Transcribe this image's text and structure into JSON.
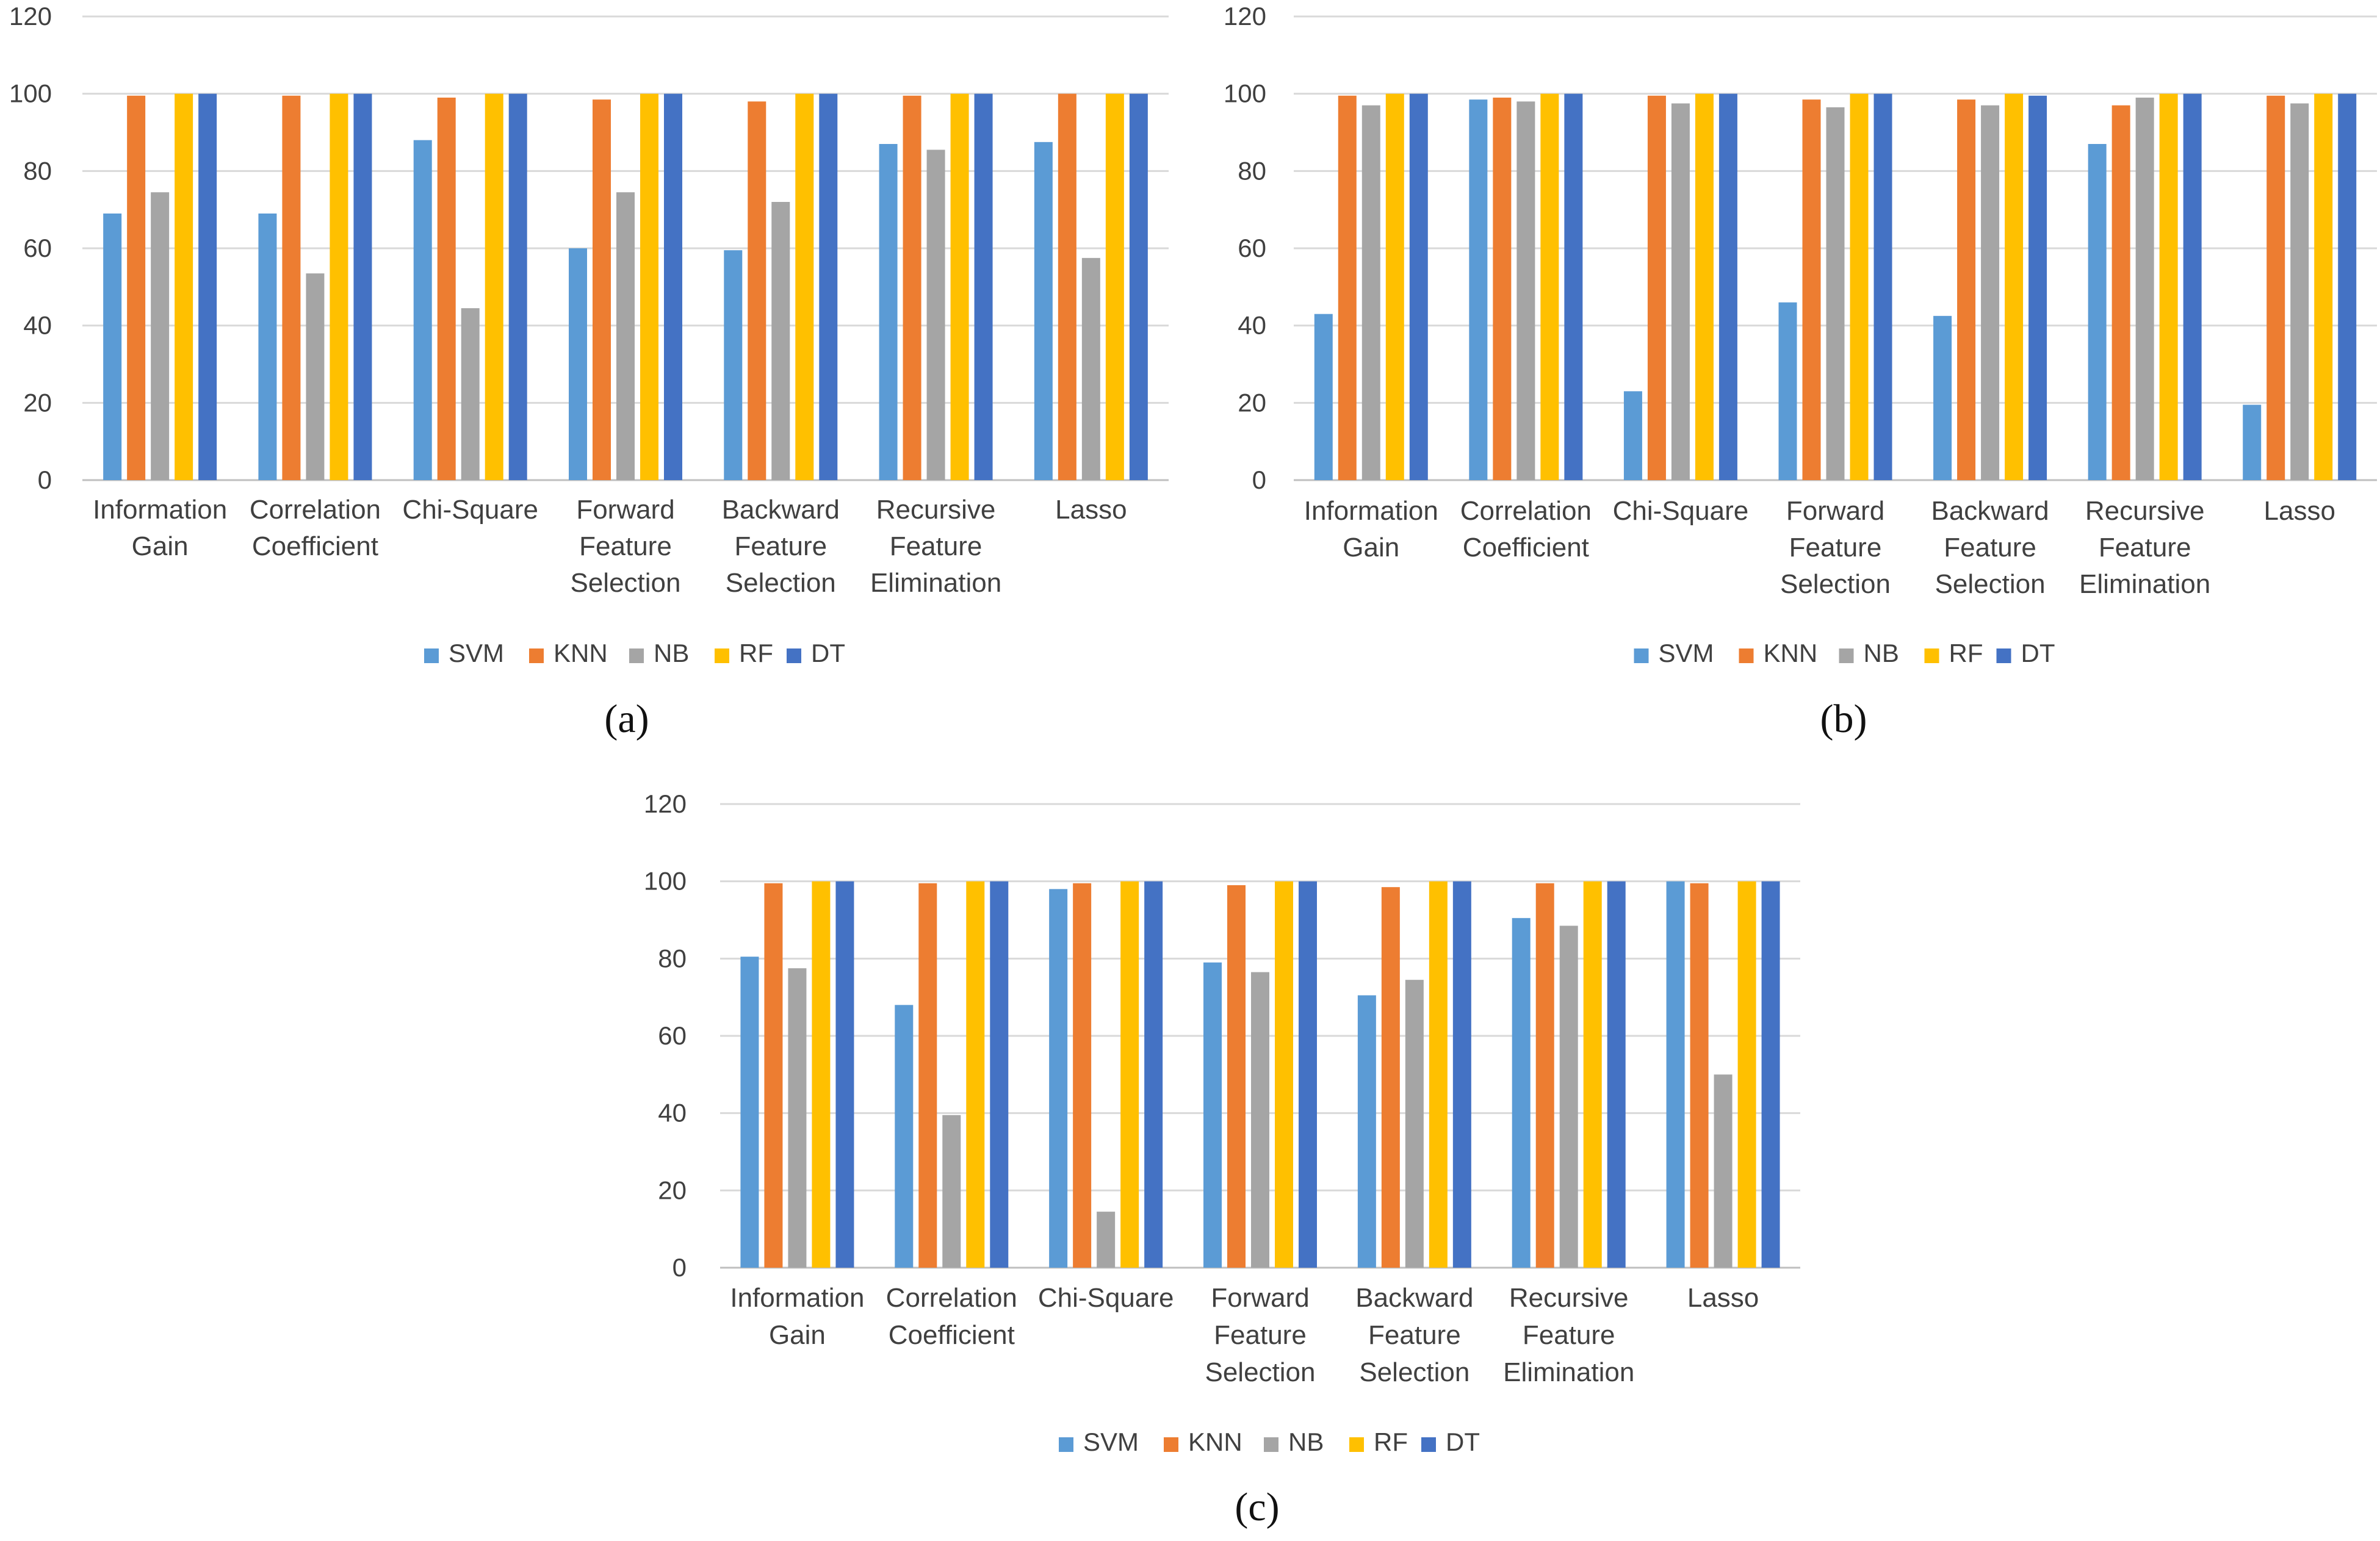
{
  "chart_data": [
    {
      "type": "bar",
      "caption": "(a)",
      "categories": [
        [
          "Information",
          "Gain"
        ],
        [
          "Correlation",
          "Coefficient"
        ],
        [
          "Chi-Square"
        ],
        [
          "Forward",
          "Feature",
          "Selection"
        ],
        [
          "Backward",
          "Feature",
          "Selection"
        ],
        [
          "Recursive",
          "Feature",
          "Elimination"
        ],
        [
          "Lasso"
        ]
      ],
      "yticks": [
        0,
        20,
        40,
        60,
        80,
        100,
        120
      ],
      "ylim": [
        0,
        120
      ],
      "grid": true,
      "legend_position": "bottom",
      "series": [
        {
          "name": "SVM",
          "color": "#5B9BD5",
          "values": [
            69,
            69,
            88,
            60,
            59.5,
            87,
            87.5
          ]
        },
        {
          "name": "KNN",
          "color": "#ED7D31",
          "values": [
            99.5,
            99.5,
            99,
            98.5,
            98,
            99.5,
            100
          ]
        },
        {
          "name": "NB",
          "color": "#A5A5A5",
          "values": [
            74.5,
            53.5,
            44.5,
            74.5,
            72,
            85.5,
            57.5
          ]
        },
        {
          "name": "RF",
          "color": "#FFC000",
          "values": [
            100,
            100,
            100,
            100,
            100,
            100,
            100
          ]
        },
        {
          "name": "DT",
          "color": "#4472C4",
          "values": [
            100,
            100,
            100,
            100,
            100,
            100,
            100
          ]
        }
      ]
    },
    {
      "type": "bar",
      "caption": "(b)",
      "categories": [
        [
          "Information",
          "Gain"
        ],
        [
          "Correlation",
          "Coefficient"
        ],
        [
          "Chi-Square"
        ],
        [
          "Forward",
          "Feature",
          "Selection"
        ],
        [
          "Backward",
          "Feature",
          "Selection"
        ],
        [
          "Recursive",
          "Feature",
          "Elimination"
        ],
        [
          "Lasso"
        ]
      ],
      "yticks": [
        0,
        20,
        40,
        60,
        80,
        100,
        120
      ],
      "ylim": [
        0,
        120
      ],
      "grid": true,
      "legend_position": "bottom",
      "series": [
        {
          "name": "SVM",
          "color": "#5B9BD5",
          "values": [
            43,
            98.5,
            23,
            46,
            42.5,
            87,
            19.5
          ]
        },
        {
          "name": "KNN",
          "color": "#ED7D31",
          "values": [
            99.5,
            99,
            99.5,
            98.5,
            98.5,
            97,
            99.5
          ]
        },
        {
          "name": "NB",
          "color": "#A5A5A5",
          "values": [
            97,
            98,
            97.5,
            96.5,
            97,
            99,
            97.5
          ]
        },
        {
          "name": "RF",
          "color": "#FFC000",
          "values": [
            100,
            100,
            100,
            100,
            100,
            100,
            100
          ]
        },
        {
          "name": "DT",
          "color": "#4472C4",
          "values": [
            100,
            100,
            100,
            100,
            99.5,
            100,
            100
          ]
        }
      ]
    },
    {
      "type": "bar",
      "caption": "(c)",
      "categories": [
        [
          "Information",
          "Gain"
        ],
        [
          "Correlation",
          "Coefficient"
        ],
        [
          "Chi-Square"
        ],
        [
          "Forward",
          "Feature",
          "Selection"
        ],
        [
          "Backward",
          "Feature",
          "Selection"
        ],
        [
          "Recursive",
          "Feature",
          "Elimination"
        ],
        [
          "Lasso"
        ]
      ],
      "yticks": [
        0,
        20,
        40,
        60,
        80,
        100,
        120
      ],
      "ylim": [
        0,
        120
      ],
      "grid": true,
      "legend_position": "bottom",
      "series": [
        {
          "name": "SVM",
          "color": "#5B9BD5",
          "values": [
            80.5,
            68,
            98,
            79,
            70.5,
            90.5,
            100
          ]
        },
        {
          "name": "KNN",
          "color": "#ED7D31",
          "values": [
            99.5,
            99.5,
            99.5,
            99,
            98.5,
            99.5,
            99.5
          ]
        },
        {
          "name": "NB",
          "color": "#A5A5A5",
          "values": [
            77.5,
            39.5,
            14.5,
            76.5,
            74.5,
            88.5,
            50
          ]
        },
        {
          "name": "RF",
          "color": "#FFC000",
          "values": [
            100,
            100,
            100,
            100,
            100,
            100,
            100
          ]
        },
        {
          "name": "DT",
          "color": "#4472C4",
          "values": [
            100,
            100,
            100,
            100,
            100,
            100,
            100
          ]
        }
      ]
    }
  ]
}
